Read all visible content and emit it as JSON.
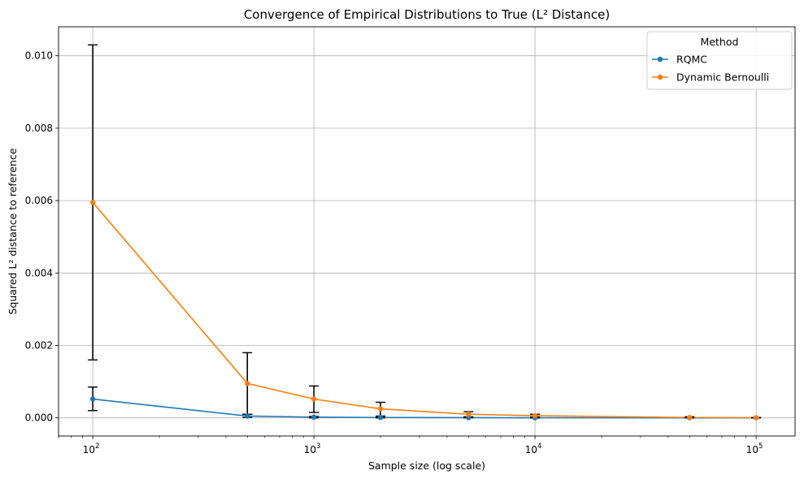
{
  "chart_data": {
    "type": "line",
    "title": "Convergence of Empirical Distributions to True (L² Distance)",
    "xlabel": "Sample size (log scale)",
    "ylabel": "Squared L² distance to reference",
    "x_scale": "log",
    "xlim": [
      70,
      150000
    ],
    "ylim": [
      -0.0005,
      0.0108
    ],
    "grid": true,
    "x_ticks": [
      {
        "value": 100,
        "base": "10",
        "exp": "2"
      },
      {
        "value": 1000,
        "base": "10",
        "exp": "3"
      },
      {
        "value": 10000,
        "base": "10",
        "exp": "4"
      },
      {
        "value": 100000,
        "base": "10",
        "exp": "5"
      }
    ],
    "y_ticks": [
      {
        "value": 0.0,
        "label": "0.000"
      },
      {
        "value": 0.002,
        "label": "0.002"
      },
      {
        "value": 0.004,
        "label": "0.004"
      },
      {
        "value": 0.006,
        "label": "0.006"
      },
      {
        "value": 0.008,
        "label": "0.008"
      },
      {
        "value": 0.01,
        "label": "0.010"
      }
    ],
    "x": [
      100,
      500,
      1000,
      2000,
      5000,
      10000,
      50000,
      100000
    ],
    "series": [
      {
        "name": "RQMC",
        "color": "#1f77b4",
        "values": [
          0.00052,
          5e-05,
          2e-05,
          1e-05,
          5e-06,
          3e-06,
          1e-06,
          5e-07
        ],
        "err_low": [
          0.0002,
          1e-05,
          0.0,
          0.0,
          0.0,
          0.0,
          0.0,
          0.0
        ],
        "err_high": [
          0.00085,
          0.0001,
          4e-05,
          2e-05,
          1e-05,
          6e-06,
          2e-06,
          1e-06
        ]
      },
      {
        "name": "Dynamic Bernoulli",
        "color": "#ff7f0e",
        "values": [
          0.00595,
          0.00095,
          0.00052,
          0.00025,
          0.0001,
          6e-05,
          1e-05,
          5e-06
        ],
        "err_low": [
          0.0016,
          0.0001,
          0.00015,
          5e-05,
          3e-05,
          2e-05,
          0.0,
          0.0
        ],
        "err_high": [
          0.0103,
          0.0018,
          0.00088,
          0.00043,
          0.00017,
          0.0001,
          3e-05,
          1e-05
        ]
      }
    ],
    "error_bar_color": "#000000",
    "legend": {
      "title": "Method",
      "placement": "top-right"
    }
  }
}
